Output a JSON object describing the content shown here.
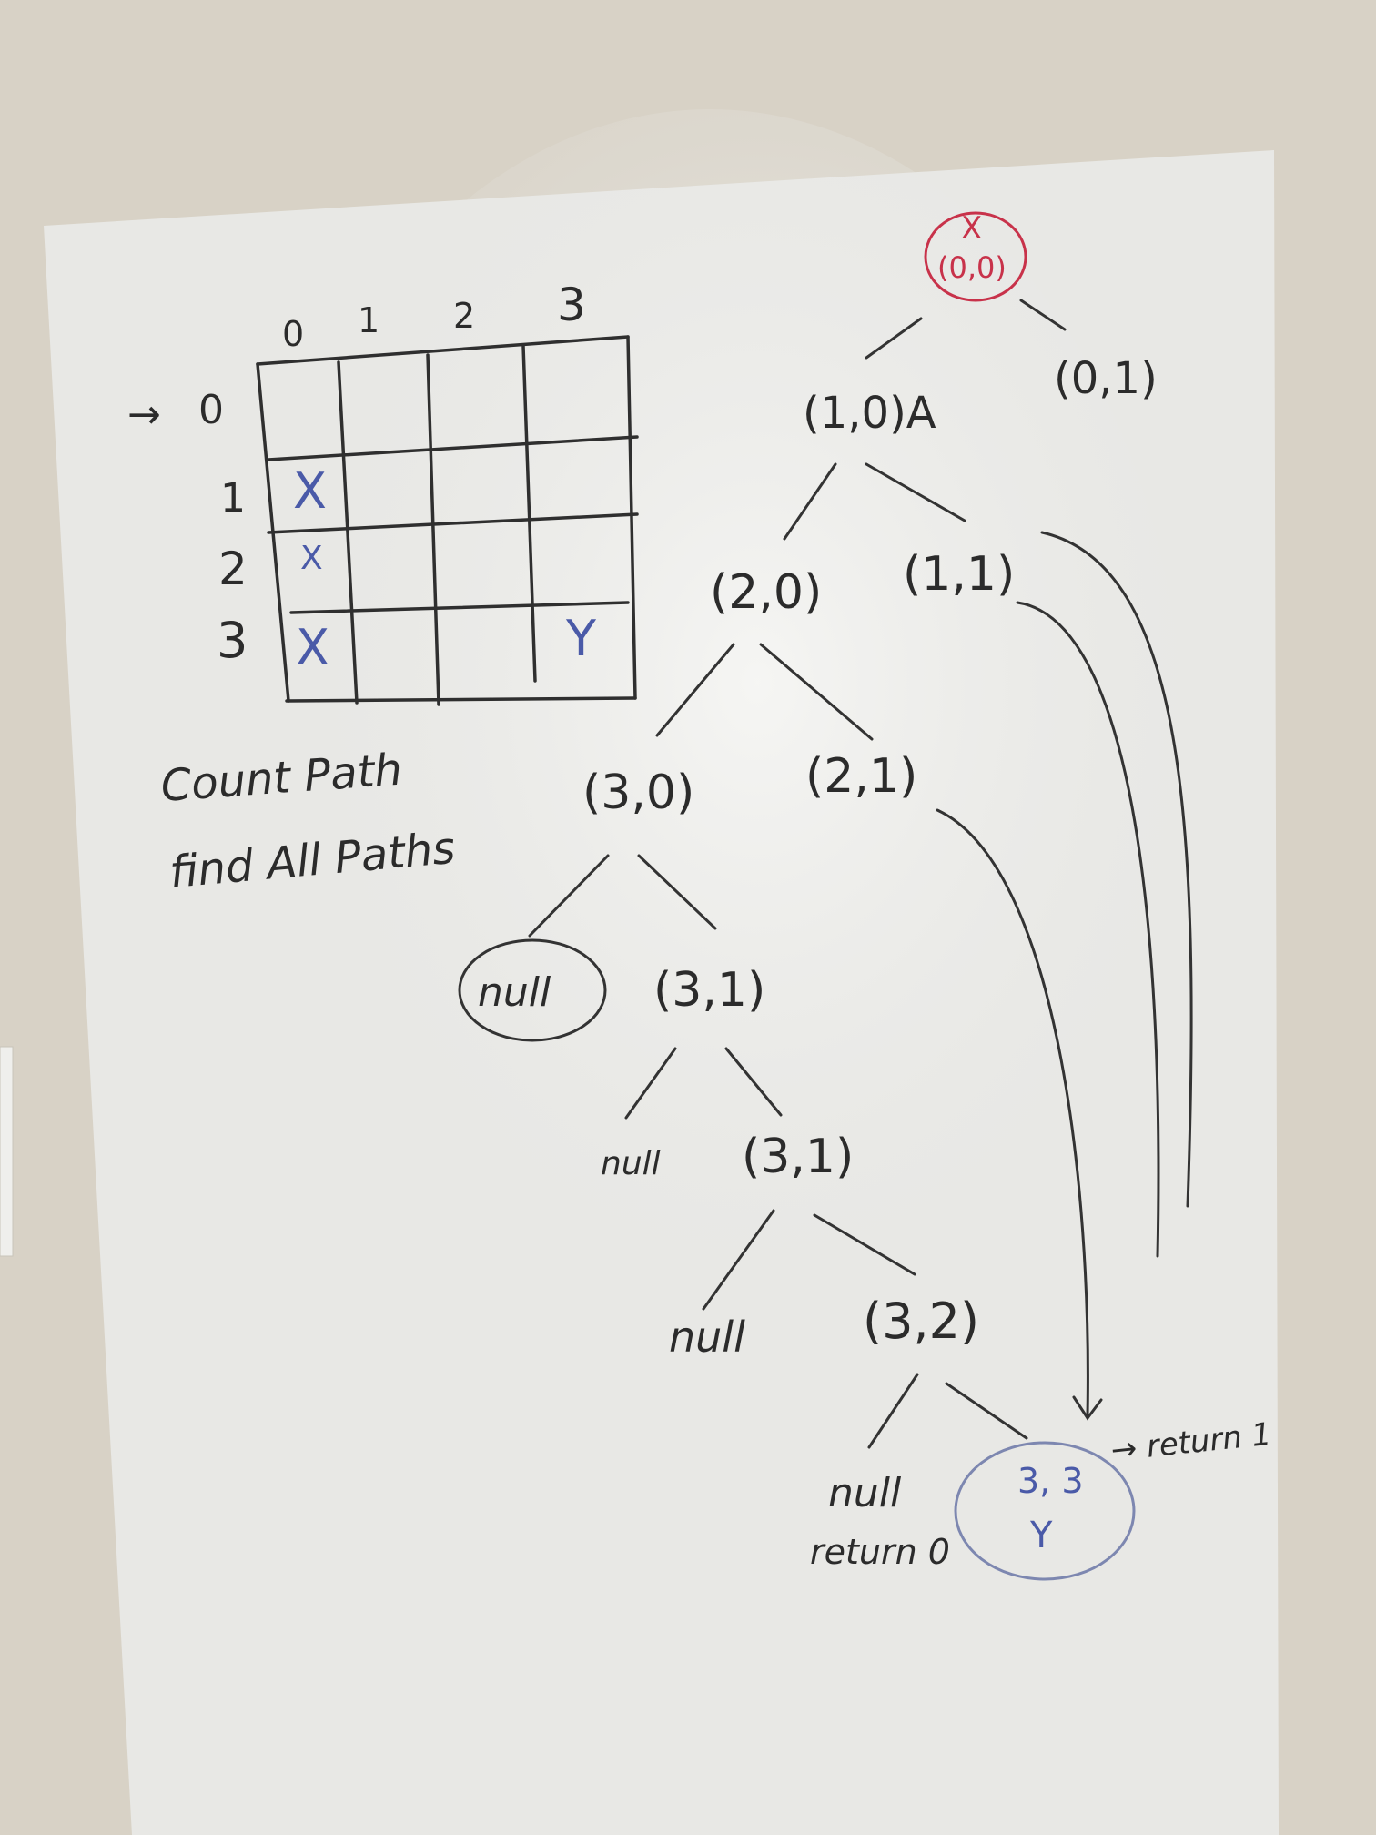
{
  "grid": {
    "col_labels": [
      "0",
      "1",
      "2",
      "3"
    ],
    "row_labels": [
      "0",
      "1",
      "2",
      "3"
    ],
    "start_arrow": "→",
    "cells": [
      {
        "text": "X",
        "row": 1,
        "col": 0
      },
      {
        "text": "X",
        "row": 2,
        "col": 0
      },
      {
        "text": "X",
        "row": 3,
        "col": 0
      },
      {
        "text": "Y",
        "row": 3,
        "col": 3
      }
    ]
  },
  "notes": {
    "line1": "Count Path",
    "line2": "find All Paths"
  },
  "tree": {
    "root_mark": "X",
    "root_coord": "(0,0)",
    "n_0_1": "(0,1)",
    "n_1_0": "(1,0)A",
    "n_2_0": "(2,0)",
    "n_1_1": "(1,1)",
    "n_3_0": "(3,0)",
    "n_2_1": "(2,1)",
    "null_circled": "null",
    "n_3_1_a": "(3,1)",
    "null_a": "null",
    "n_3_1_b": "(3,1)",
    "null_b": "null",
    "n_3_2": "(3,2)",
    "null_c": "null",
    "return_0": "return 0",
    "target_coord": "3, 3",
    "target_mark": "Y",
    "return_1": "→ return 1"
  },
  "colors": {
    "wall": "#d9d3c8",
    "board": "#e9e9e6",
    "ink": "#2b2b2b",
    "red": "#c8324a",
    "blue": "#4a5aa8"
  }
}
